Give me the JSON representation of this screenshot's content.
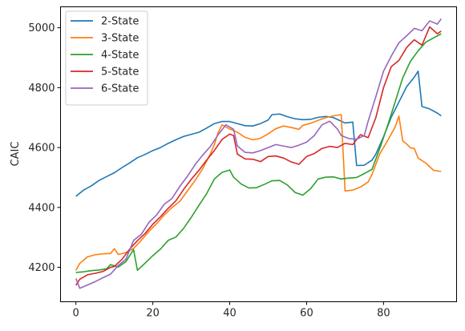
{
  "chart_data": {
    "type": "line",
    "title": "",
    "xlabel": "",
    "ylabel": "CAIC",
    "xlim": [
      -4,
      99
    ],
    "ylim": [
      4085,
      5070
    ],
    "xticks": [
      0,
      20,
      40,
      60,
      80
    ],
    "yticks": [
      4200,
      4400,
      4600,
      4800,
      5000
    ],
    "grid": false,
    "legend_position": "top-left",
    "series": [
      {
        "name": "2-State",
        "color": "#1f77b4",
        "points": [
          [
            0,
            4437
          ],
          [
            2,
            4458
          ],
          [
            4,
            4472
          ],
          [
            6,
            4490
          ],
          [
            8,
            4503
          ],
          [
            10,
            4516
          ],
          [
            12,
            4533
          ],
          [
            14,
            4549
          ],
          [
            16,
            4566
          ],
          [
            18,
            4577
          ],
          [
            20,
            4590
          ],
          [
            22,
            4600
          ],
          [
            24,
            4614
          ],
          [
            26,
            4626
          ],
          [
            28,
            4637
          ],
          [
            30,
            4644
          ],
          [
            32,
            4651
          ],
          [
            34,
            4665
          ],
          [
            36,
            4680
          ],
          [
            38,
            4687
          ],
          [
            40,
            4687
          ],
          [
            42,
            4680
          ],
          [
            44,
            4673
          ],
          [
            46,
            4672
          ],
          [
            48,
            4680
          ],
          [
            50,
            4692
          ],
          [
            51,
            4710
          ],
          [
            53,
            4712
          ],
          [
            55,
            4703
          ],
          [
            57,
            4696
          ],
          [
            59,
            4693
          ],
          [
            61,
            4694
          ],
          [
            63,
            4701
          ],
          [
            65,
            4704
          ],
          [
            67,
            4700
          ],
          [
            69,
            4688
          ],
          [
            70,
            4682
          ],
          [
            72,
            4685
          ],
          [
            73,
            4540
          ],
          [
            75,
            4541
          ],
          [
            77,
            4558
          ],
          [
            78,
            4578
          ],
          [
            80,
            4636
          ],
          [
            82,
            4701
          ],
          [
            84,
            4752
          ],
          [
            86,
            4803
          ],
          [
            88,
            4835
          ],
          [
            89,
            4855
          ],
          [
            90,
            4737
          ],
          [
            92,
            4729
          ],
          [
            94,
            4715
          ],
          [
            95,
            4706
          ]
        ]
      },
      {
        "name": "3-State",
        "color": "#ff7f0e",
        "points": [
          [
            0,
            4190
          ],
          [
            1,
            4213
          ],
          [
            3,
            4235
          ],
          [
            5,
            4242
          ],
          [
            7,
            4245
          ],
          [
            9,
            4246
          ],
          [
            10,
            4262
          ],
          [
            11,
            4243
          ],
          [
            13,
            4249
          ],
          [
            15,
            4263
          ],
          [
            17,
            4290
          ],
          [
            19,
            4320
          ],
          [
            21,
            4346
          ],
          [
            23,
            4375
          ],
          [
            25,
            4400
          ],
          [
            27,
            4420
          ],
          [
            29,
            4455
          ],
          [
            31,
            4490
          ],
          [
            33,
            4530
          ],
          [
            35,
            4580
          ],
          [
            36,
            4610
          ],
          [
            37,
            4650
          ],
          [
            38,
            4676
          ],
          [
            40,
            4662
          ],
          [
            42,
            4651
          ],
          [
            44,
            4634
          ],
          [
            46,
            4626
          ],
          [
            48,
            4631
          ],
          [
            50,
            4646
          ],
          [
            52,
            4663
          ],
          [
            54,
            4672
          ],
          [
            56,
            4667
          ],
          [
            58,
            4661
          ],
          [
            59,
            4674
          ],
          [
            61,
            4681
          ],
          [
            63,
            4691
          ],
          [
            65,
            4700
          ],
          [
            67,
            4706
          ],
          [
            69,
            4710
          ],
          [
            70,
            4455
          ],
          [
            72,
            4458
          ],
          [
            74,
            4468
          ],
          [
            76,
            4485
          ],
          [
            77,
            4510
          ],
          [
            79,
            4578
          ],
          [
            81,
            4622
          ],
          [
            83,
            4668
          ],
          [
            84,
            4705
          ],
          [
            85,
            4622
          ],
          [
            86,
            4612
          ],
          [
            87,
            4599
          ],
          [
            88,
            4597
          ],
          [
            89,
            4565
          ],
          [
            91,
            4548
          ],
          [
            93,
            4524
          ],
          [
            95,
            4520
          ]
        ]
      },
      {
        "name": "4-State",
        "color": "#2ca02c",
        "points": [
          [
            0,
            4183
          ],
          [
            2,
            4185
          ],
          [
            4,
            4189
          ],
          [
            6,
            4191
          ],
          [
            8,
            4195
          ],
          [
            9,
            4209
          ],
          [
            11,
            4201
          ],
          [
            13,
            4219
          ],
          [
            15,
            4259
          ],
          [
            16,
            4190
          ],
          [
            18,
            4214
          ],
          [
            20,
            4239
          ],
          [
            22,
            4261
          ],
          [
            24,
            4290
          ],
          [
            26,
            4301
          ],
          [
            28,
            4330
          ],
          [
            30,
            4367
          ],
          [
            32,
            4407
          ],
          [
            34,
            4446
          ],
          [
            36,
            4495
          ],
          [
            38,
            4517
          ],
          [
            40,
            4525
          ],
          [
            41,
            4501
          ],
          [
            43,
            4478
          ],
          [
            45,
            4465
          ],
          [
            47,
            4466
          ],
          [
            49,
            4477
          ],
          [
            51,
            4489
          ],
          [
            53,
            4490
          ],
          [
            55,
            4475
          ],
          [
            57,
            4450
          ],
          [
            59,
            4441
          ],
          [
            61,
            4462
          ],
          [
            63,
            4495
          ],
          [
            65,
            4501
          ],
          [
            67,
            4502
          ],
          [
            69,
            4495
          ],
          [
            71,
            4498
          ],
          [
            73,
            4500
          ],
          [
            75,
            4513
          ],
          [
            77,
            4527
          ],
          [
            79,
            4596
          ],
          [
            81,
            4671
          ],
          [
            83,
            4751
          ],
          [
            85,
            4833
          ],
          [
            87,
            4888
          ],
          [
            89,
            4923
          ],
          [
            91,
            4952
          ],
          [
            93,
            4966
          ],
          [
            95,
            4980
          ]
        ]
      },
      {
        "name": "5-State",
        "color": "#d62728",
        "points": [
          [
            0,
            4140
          ],
          [
            1,
            4160
          ],
          [
            3,
            4175
          ],
          [
            5,
            4180
          ],
          [
            7,
            4186
          ],
          [
            9,
            4200
          ],
          [
            10,
            4203
          ],
          [
            12,
            4227
          ],
          [
            14,
            4261
          ],
          [
            16,
            4289
          ],
          [
            18,
            4313
          ],
          [
            20,
            4344
          ],
          [
            22,
            4369
          ],
          [
            24,
            4397
          ],
          [
            26,
            4422
          ],
          [
            28,
            4460
          ],
          [
            30,
            4494
          ],
          [
            32,
            4524
          ],
          [
            34,
            4558
          ],
          [
            36,
            4590
          ],
          [
            38,
            4627
          ],
          [
            40,
            4645
          ],
          [
            41,
            4640
          ],
          [
            42,
            4578
          ],
          [
            44,
            4562
          ],
          [
            46,
            4561
          ],
          [
            48,
            4553
          ],
          [
            50,
            4570
          ],
          [
            52,
            4572
          ],
          [
            54,
            4565
          ],
          [
            56,
            4552
          ],
          [
            58,
            4544
          ],
          [
            60,
            4570
          ],
          [
            62,
            4580
          ],
          [
            64,
            4597
          ],
          [
            66,
            4604
          ],
          [
            68,
            4600
          ],
          [
            70,
            4614
          ],
          [
            72,
            4610
          ],
          [
            74,
            4643
          ],
          [
            76,
            4633
          ],
          [
            78,
            4700
          ],
          [
            80,
            4800
          ],
          [
            82,
            4870
          ],
          [
            84,
            4891
          ],
          [
            86,
            4934
          ],
          [
            88,
            4960
          ],
          [
            90,
            4942
          ],
          [
            92,
            5003
          ],
          [
            94,
            4980
          ],
          [
            95,
            4989
          ]
        ]
      },
      {
        "name": "6-State",
        "color": "#9467bd",
        "points": [
          [
            0,
            4163
          ],
          [
            1,
            4130
          ],
          [
            3,
            4141
          ],
          [
            5,
            4152
          ],
          [
            7,
            4165
          ],
          [
            9,
            4177
          ],
          [
            11,
            4206
          ],
          [
            13,
            4227
          ],
          [
            15,
            4290
          ],
          [
            17,
            4310
          ],
          [
            19,
            4350
          ],
          [
            21,
            4375
          ],
          [
            23,
            4411
          ],
          [
            25,
            4430
          ],
          [
            27,
            4470
          ],
          [
            29,
            4504
          ],
          [
            31,
            4543
          ],
          [
            33,
            4575
          ],
          [
            35,
            4604
          ],
          [
            37,
            4643
          ],
          [
            39,
            4676
          ],
          [
            41,
            4661
          ],
          [
            42,
            4605
          ],
          [
            44,
            4584
          ],
          [
            46,
            4582
          ],
          [
            48,
            4590
          ],
          [
            50,
            4600
          ],
          [
            52,
            4610
          ],
          [
            54,
            4605
          ],
          [
            56,
            4600
          ],
          [
            58,
            4608
          ],
          [
            60,
            4618
          ],
          [
            62,
            4640
          ],
          [
            64,
            4676
          ],
          [
            66,
            4688
          ],
          [
            68,
            4662
          ],
          [
            69,
            4640
          ],
          [
            71,
            4630
          ],
          [
            73,
            4628
          ],
          [
            75,
            4640
          ],
          [
            76,
            4688
          ],
          [
            78,
            4770
          ],
          [
            80,
            4855
          ],
          [
            82,
            4905
          ],
          [
            84,
            4950
          ],
          [
            86,
            4973
          ],
          [
            88,
            4998
          ],
          [
            90,
            4990
          ],
          [
            92,
            5023
          ],
          [
            94,
            5012
          ],
          [
            95,
            5030
          ]
        ]
      }
    ]
  }
}
